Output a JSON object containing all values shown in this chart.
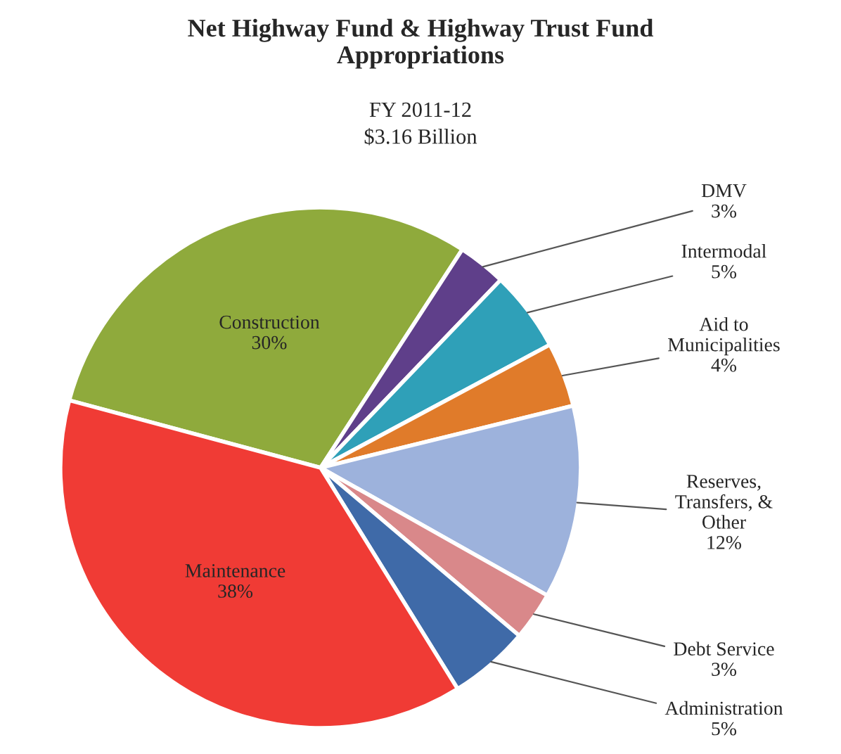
{
  "chart_data": {
    "type": "pie",
    "title": "Net Highway Fund & Highway Trust Fund\nAppropriations",
    "subtitle": "FY 2011-12\n$3.16 Billion",
    "categories": [
      "Construction",
      "DMV",
      "Intermodal",
      "Aid to\nMunicipalities",
      "Reserves,\nTransfers, &\nOther",
      "Debt Service",
      "Administration",
      "Maintenance"
    ],
    "values": [
      30,
      3,
      5,
      4,
      12,
      3,
      5,
      38
    ],
    "value_labels": [
      "30%",
      "3%",
      "5%",
      "4%",
      "12%",
      "3%",
      "5%",
      "38%"
    ],
    "colors": [
      "#8faa3c",
      "#5f3f8a",
      "#2fa0b8",
      "#e07b2a",
      "#9db2dc",
      "#d9888a",
      "#3f6aa8",
      "#f03b35"
    ],
    "legend": false
  }
}
